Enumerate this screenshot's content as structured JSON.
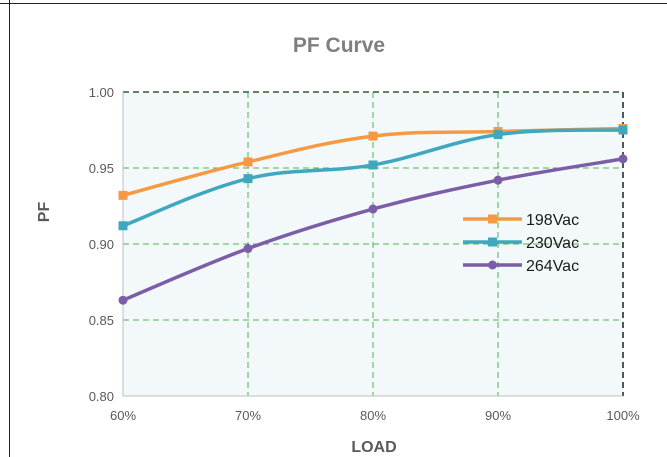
{
  "chart_data": {
    "type": "line",
    "title": "PF Curve",
    "xlabel": "LOAD",
    "ylabel": "PF",
    "categories": [
      "60%",
      "70%",
      "80%",
      "90%",
      "100%"
    ],
    "ylim": [
      0.8,
      1.0
    ],
    "yticks": [
      "0.80",
      "0.85",
      "0.90",
      "0.95",
      "1.00"
    ],
    "grid": true,
    "legend_position": "right",
    "series": [
      {
        "name": "198Vac",
        "color": "#f59a42",
        "values": [
          0.932,
          0.954,
          0.971,
          0.974,
          0.976
        ]
      },
      {
        "name": "230Vac",
        "color": "#3fa7bf",
        "values": [
          0.912,
          0.943,
          0.952,
          0.972,
          0.975
        ]
      },
      {
        "name": "264Vac",
        "color": "#7b5ea7",
        "values": [
          0.863,
          0.897,
          0.923,
          0.942,
          0.956
        ]
      }
    ]
  }
}
